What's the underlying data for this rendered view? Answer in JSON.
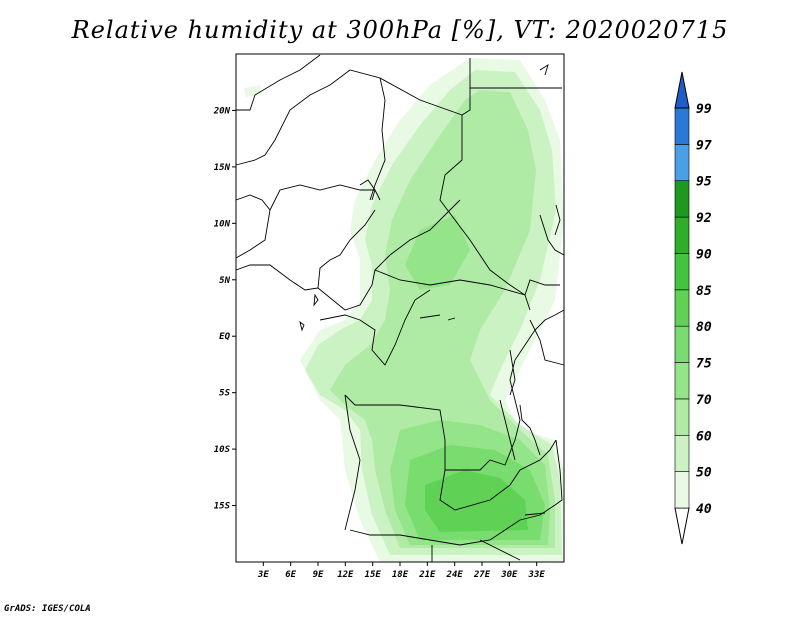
{
  "title": "Relative humidity at 300hPa [%], VT: 2020020715",
  "credit": "GrADS: IGES/COLA",
  "map": {
    "lon_range": [
      0,
      36
    ],
    "lat_range": [
      -20,
      25
    ],
    "x_ticks": [
      {
        "lon": 3,
        "label": "3E"
      },
      {
        "lon": 6,
        "label": "6E"
      },
      {
        "lon": 9,
        "label": "9E"
      },
      {
        "lon": 12,
        "label": "12E"
      },
      {
        "lon": 15,
        "label": "15E"
      },
      {
        "lon": 18,
        "label": "18E"
      },
      {
        "lon": 21,
        "label": "21E"
      },
      {
        "lon": 24,
        "label": "24E"
      },
      {
        "lon": 27,
        "label": "27E"
      },
      {
        "lon": 30,
        "label": "30E"
      },
      {
        "lon": 33,
        "label": "33E"
      }
    ],
    "y_ticks": [
      {
        "lat": 20,
        "label": "20N"
      },
      {
        "lat": 15,
        "label": "15N"
      },
      {
        "lat": 10,
        "label": "10N"
      },
      {
        "lat": 5,
        "label": "5N"
      },
      {
        "lat": 0,
        "label": "EQ"
      },
      {
        "lat": -5,
        "label": "5S"
      },
      {
        "lat": -10,
        "label": "10S"
      },
      {
        "lat": -15,
        "label": "15S"
      }
    ]
  },
  "colorbar": {
    "levels": [
      "40",
      "50",
      "60",
      "70",
      "75",
      "80",
      "85",
      "90",
      "92",
      "95",
      "97",
      "99"
    ],
    "colors": [
      "#e8fae4",
      "#cbf2c3",
      "#b0eba6",
      "#94e48a",
      "#78dc6e",
      "#5fd255",
      "#44c43e",
      "#2fae2a",
      "#1d9a1d",
      "#4aa0e8",
      "#2a78d8",
      "#1e5ec8"
    ],
    "under_color": "#ffffff",
    "over_color": "#1e5ec8"
  }
}
